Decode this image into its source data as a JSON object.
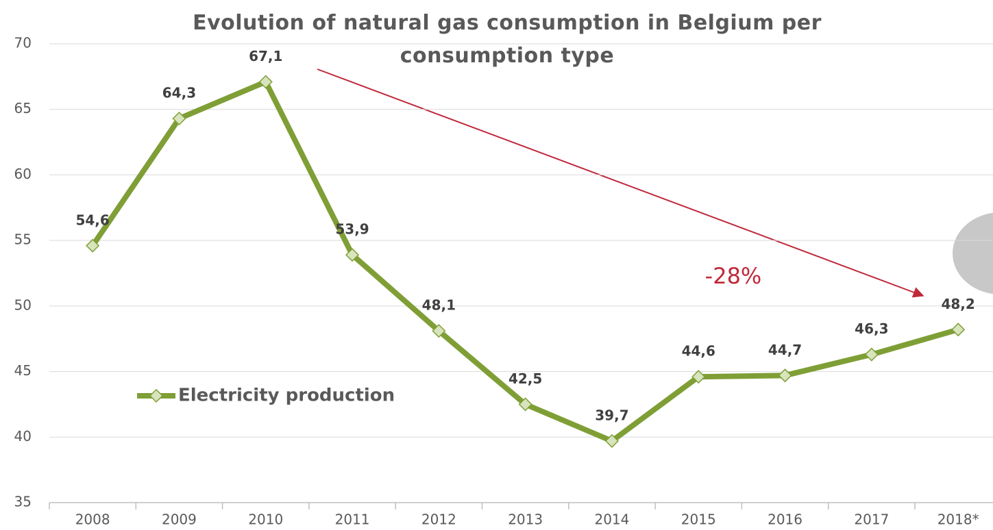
{
  "chart_data": {
    "type": "line",
    "title": "Evolution of natural gas consumption in Belgium per consumption type",
    "categories": [
      "2008",
      "2009",
      "2010",
      "2011",
      "2012",
      "2013",
      "2014",
      "2015",
      "2016",
      "2017",
      "2018*"
    ],
    "series": [
      {
        "name": "Electricity production",
        "color": "#7f9f36",
        "values": [
          54.6,
          64.3,
          67.1,
          53.9,
          48.1,
          42.5,
          39.7,
          44.6,
          44.7,
          46.3,
          48.2
        ],
        "value_labels": [
          "54,6",
          "64,3",
          "67,1",
          "53,9",
          "48,1",
          "42,5",
          "39,7",
          "44,6",
          "44,7",
          "46,3",
          "48,2"
        ]
      }
    ],
    "ylim": [
      35,
      70
    ],
    "yticks": [
      35,
      40,
      45,
      50,
      55,
      60,
      65,
      70
    ],
    "grid": true,
    "legend": "left",
    "annotation": "-28%",
    "annotation_color": "#c0283a"
  }
}
